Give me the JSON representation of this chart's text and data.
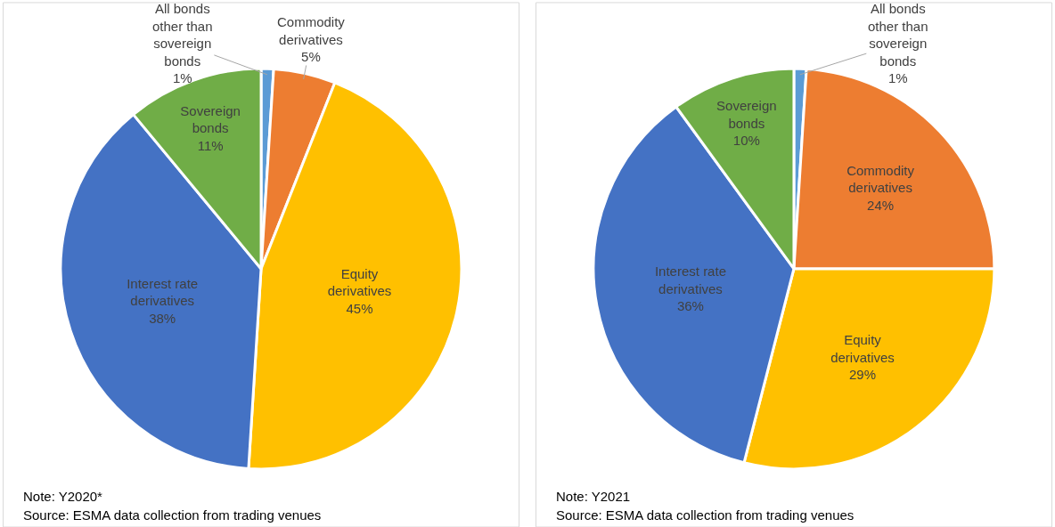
{
  "chart_data": [
    {
      "type": "pie",
      "categories": [
        "All bonds other than sovereign bonds",
        "Commodity derivatives",
        "Equity derivatives",
        "Interest rate derivatives",
        "Sovereign bonds"
      ],
      "values": [
        1,
        5,
        45,
        38,
        11
      ],
      "value_labels": [
        "1%",
        "5%",
        "45%",
        "38%",
        "11%"
      ],
      "colors": [
        "#5b9bd5",
        "#ed7d31",
        "#ffc000",
        "#4472c4",
        "#70ad47"
      ],
      "legend": false,
      "annotations": [
        "Note: Y2020*",
        "Source: ESMA data collection from trading venues"
      ]
    },
    {
      "type": "pie",
      "categories": [
        "All bonds other than sovereign bonds",
        "Commodity derivatives",
        "Equity derivatives",
        "Interest rate derivatives",
        "Sovereign bonds"
      ],
      "values": [
        1,
        24,
        29,
        36,
        10
      ],
      "value_labels": [
        "1%",
        "24%",
        "29%",
        "36%",
        "10%"
      ],
      "colors": [
        "#5b9bd5",
        "#ed7d31",
        "#ffc000",
        "#4472c4",
        "#70ad47"
      ],
      "legend": false,
      "annotations": [
        "Note: Y2021",
        "Source: ESMA data collection from trading venues"
      ]
    }
  ]
}
